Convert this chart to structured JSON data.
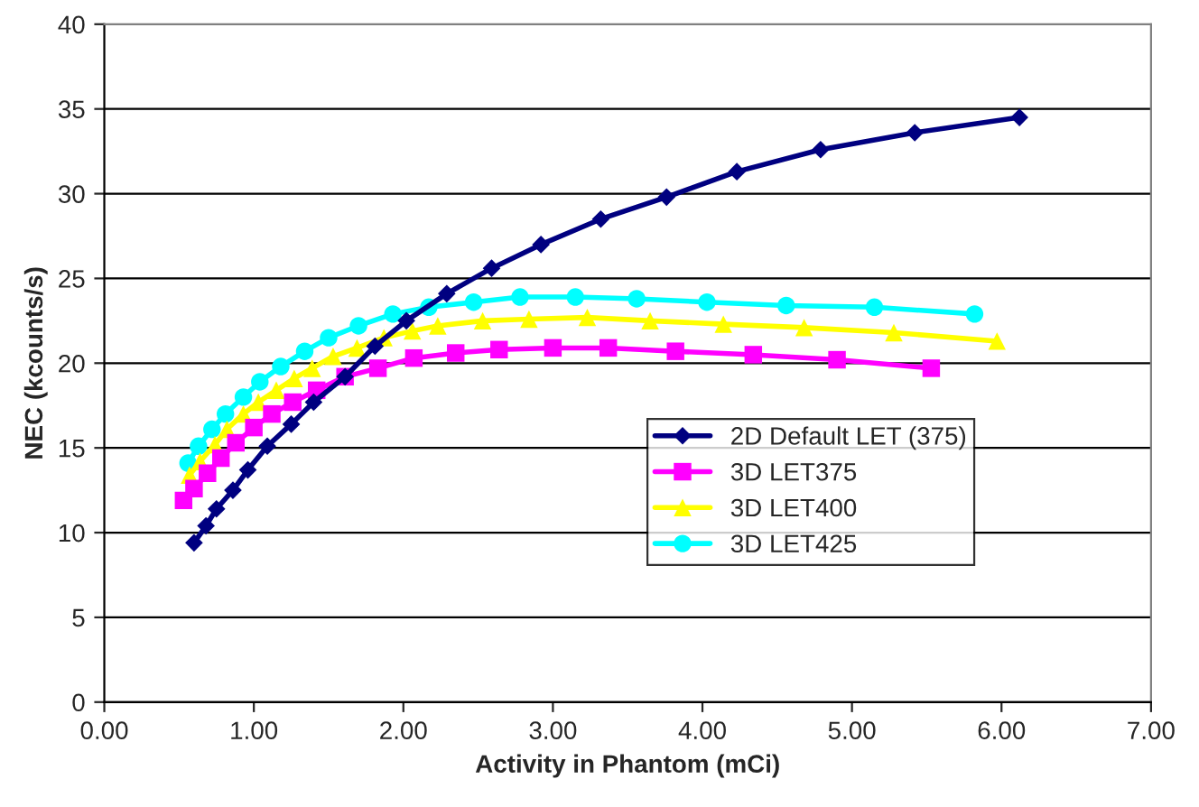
{
  "chart_data": {
    "type": "line",
    "xlabel": "Activity in Phantom (mCi)",
    "ylabel": "NEC (kcounts/s)",
    "xlim": [
      0,
      7
    ],
    "xticks": [
      {
        "value": 0,
        "label": "0.00"
      },
      {
        "value": 1,
        "label": "1.00"
      },
      {
        "value": 2,
        "label": "2.00"
      },
      {
        "value": 3,
        "label": "3.00"
      },
      {
        "value": 4,
        "label": "4.00"
      },
      {
        "value": 5,
        "label": "5.00"
      },
      {
        "value": 6,
        "label": "6.00"
      },
      {
        "value": 7,
        "label": "7.00"
      }
    ],
    "ylim": [
      0,
      40
    ],
    "yticks": [
      0,
      5,
      10,
      15,
      20,
      25,
      30,
      35,
      40
    ],
    "grid": "y",
    "legend": "right",
    "series": [
      {
        "name": "2D Default LET (375)",
        "color": "#000080",
        "marker": "diamond",
        "x": [
          0.6,
          0.68,
          0.75,
          0.86,
          0.96,
          1.09,
          1.25,
          1.4,
          1.61,
          1.81,
          2.02,
          2.29,
          2.59,
          2.92,
          3.32,
          3.76,
          4.23,
          4.79,
          5.42,
          6.12
        ],
        "values": [
          9.4,
          10.4,
          11.4,
          12.5,
          13.7,
          15.1,
          16.4,
          17.7,
          19.2,
          21.0,
          22.5,
          24.1,
          25.6,
          27.0,
          28.5,
          29.8,
          31.3,
          32.6,
          33.6,
          34.5
        ]
      },
      {
        "name": "3D LET375",
        "color": "#ff00ff",
        "marker": "square",
        "x": [
          0.53,
          0.6,
          0.69,
          0.78,
          0.88,
          1.0,
          1.12,
          1.26,
          1.42,
          1.61,
          1.83,
          2.07,
          2.35,
          2.64,
          3.0,
          3.37,
          3.82,
          4.34,
          4.9,
          5.53
        ],
        "values": [
          11.9,
          12.6,
          13.5,
          14.4,
          15.3,
          16.2,
          17.0,
          17.7,
          18.4,
          19.2,
          19.7,
          20.3,
          20.6,
          20.8,
          20.9,
          20.9,
          20.7,
          20.5,
          20.2,
          19.7
        ]
      },
      {
        "name": "3D LET400",
        "color": "#ffff00",
        "marker": "triangle",
        "x": [
          0.57,
          0.64,
          0.74,
          0.82,
          0.93,
          1.03,
          1.15,
          1.27,
          1.39,
          1.53,
          1.69,
          1.87,
          2.06,
          2.23,
          2.53,
          2.84,
          3.23,
          3.65,
          4.14,
          4.68,
          5.28,
          5.97
        ],
        "values": [
          13.4,
          14.2,
          15.2,
          16.1,
          17.0,
          17.7,
          18.4,
          19.1,
          19.7,
          20.4,
          20.9,
          21.5,
          21.9,
          22.2,
          22.5,
          22.6,
          22.7,
          22.5,
          22.3,
          22.1,
          21.8,
          21.3
        ]
      },
      {
        "name": "3D LET425",
        "color": "#00ffff",
        "marker": "circle",
        "x": [
          0.56,
          0.63,
          0.72,
          0.81,
          0.93,
          1.04,
          1.18,
          1.34,
          1.5,
          1.7,
          1.93,
          2.17,
          2.47,
          2.78,
          3.15,
          3.56,
          4.03,
          4.56,
          5.15,
          5.82
        ],
        "values": [
          14.1,
          15.1,
          16.1,
          17.0,
          18.0,
          18.9,
          19.8,
          20.7,
          21.5,
          22.2,
          22.9,
          23.3,
          23.6,
          23.9,
          23.9,
          23.8,
          23.6,
          23.4,
          23.3,
          22.9
        ]
      }
    ]
  }
}
